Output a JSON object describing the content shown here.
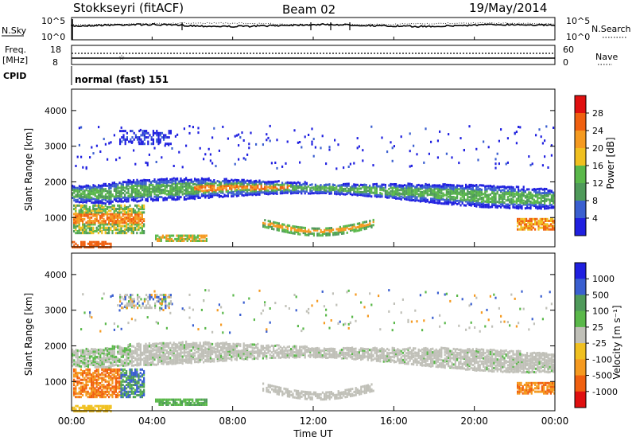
{
  "header": {
    "station": "Stokkseyri (fitACF)",
    "beam": "Beam 02",
    "date": "19/May/2014"
  },
  "noise_panel": {
    "left_label": "N.Sky",
    "right_label": "N.Search",
    "left_ticks": [
      "10^5",
      "10^0"
    ],
    "right_ticks": [
      "10^5",
      "10^0"
    ]
  },
  "freq_panel": {
    "left_label_1": "Freq.",
    "left_label_2": "[MHz]",
    "right_label": "Nave",
    "left_ticks": [
      "18",
      "8"
    ],
    "right_ticks": [
      "60",
      "0"
    ]
  },
  "cpid": {
    "label": "CPID",
    "mode": "normal (fast) 151"
  },
  "colors": {
    "power": [
      "#2020e0",
      "#3a5fd0",
      "#4f9a5a",
      "#5ab84a",
      "#f0c020",
      "#f59a20",
      "#f06010",
      "#e01010"
    ],
    "velocity": [
      "#e01010",
      "#f06010",
      "#f59a20",
      "#f0c020",
      "#c0c0b8",
      "#5ab84a",
      "#4f9a5a",
      "#3a5fd0",
      "#2020e0"
    ]
  },
  "chart_data": [
    {
      "type": "heatmap",
      "name": "power",
      "ylabel": "Slant Range [km]",
      "xlabel": "",
      "ylim": [
        180,
        4600
      ],
      "y_ticks": [
        "1000",
        "2000",
        "3000",
        "4000"
      ],
      "x_ticks": [],
      "colorbar": {
        "label": "Power [dB]",
        "ticks": [
          "4",
          "8",
          "12",
          "16",
          "20",
          "24",
          "28"
        ]
      }
    },
    {
      "type": "heatmap",
      "name": "velocity",
      "ylabel": "Slant Range [km]",
      "xlabel": "Time UT",
      "ylim": [
        180,
        4600
      ],
      "y_ticks": [
        "1000",
        "2000",
        "3000",
        "4000"
      ],
      "x_ticks": [
        "00:00",
        "04:00",
        "08:00",
        "12:00",
        "16:00",
        "20:00",
        "00:00"
      ],
      "colorbar": {
        "label": "Velocity [m s⁻¹]",
        "ticks": [
          "1000",
          "500",
          "100",
          "25",
          "-25",
          "-100",
          "-500",
          "-1000"
        ]
      }
    }
  ]
}
